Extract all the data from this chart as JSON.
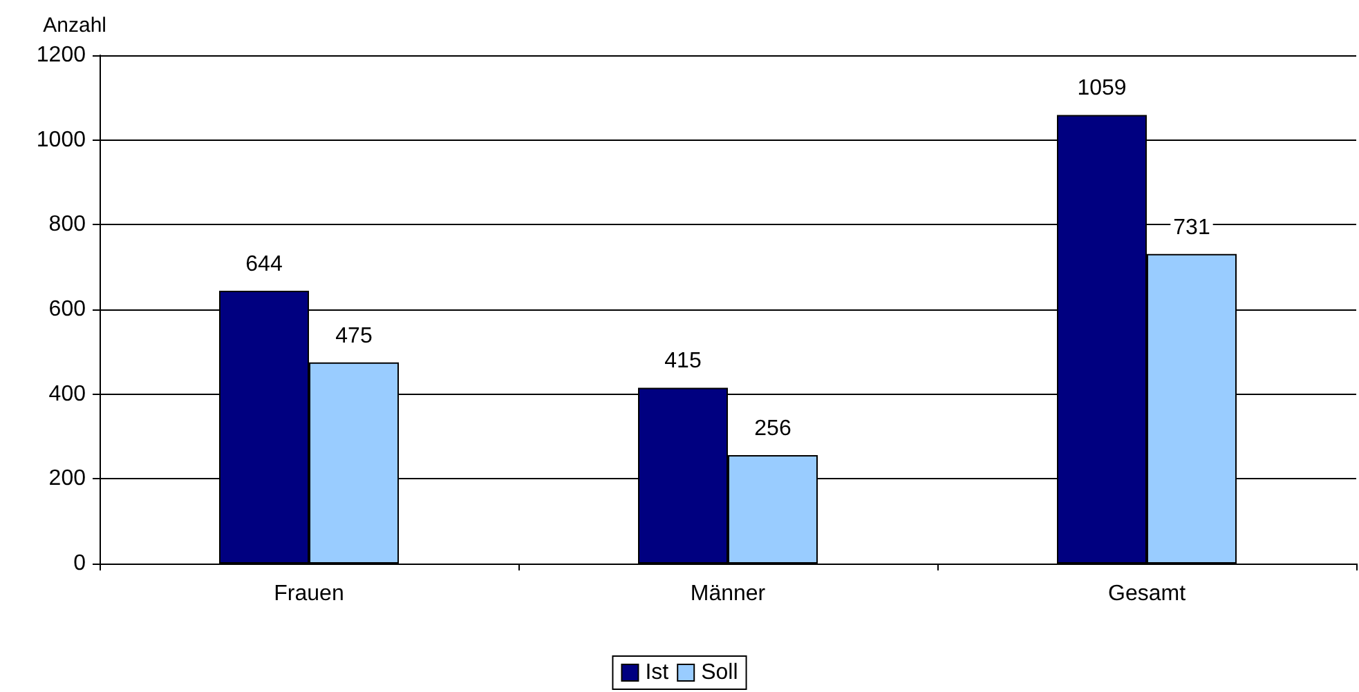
{
  "chart_data": {
    "type": "bar",
    "ylabel": "Anzahl",
    "categories": [
      "Frauen",
      "Männer",
      "Gesamt"
    ],
    "series": [
      {
        "name": "Ist",
        "color": "#000080",
        "values": [
          644,
          415,
          1059
        ]
      },
      {
        "name": "Soll",
        "color": "#99ccff",
        "values": [
          475,
          256,
          731
        ]
      }
    ],
    "ylim": [
      0,
      1200
    ],
    "yticks": [
      0,
      200,
      400,
      600,
      800,
      1000,
      1200
    ],
    "grid": "y",
    "legend": "bottom",
    "data_labels": true
  }
}
